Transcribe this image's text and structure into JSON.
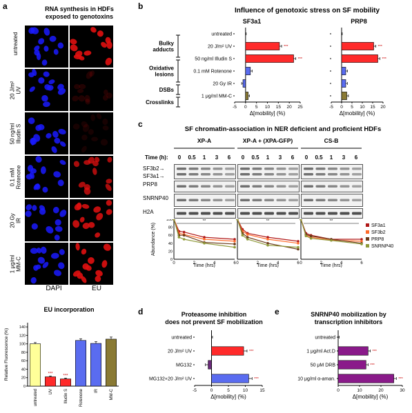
{
  "panel_a": {
    "letter": "a",
    "title": "RNA synthesis in HDFs\nexposed to genotoxins",
    "title_l1": "RNA synthesis in HDFs",
    "title_l2": "exposed to genotoxins",
    "rows": [
      "untreated",
      "20 J/m²\nUV",
      "50 ng/ml\nIlludin S",
      "0.1 mM\nRotenone",
      "20 Gy\nIR",
      "1 μg/ml\nMM-C"
    ],
    "col_dapi": "DAPI",
    "col_eu": "EU",
    "colors": {
      "dapi": "#1a1aff",
      "eu": "#e01010"
    }
  },
  "eu_chart_title": "EU incorporation",
  "panel_b": {
    "letter": "b",
    "title": "Influence of genotoxic stress on SF mobility",
    "sub_left": "SF3a1",
    "sub_right": "PRP8",
    "groups": [
      "Bulky\nadducts",
      "Oxidative\nlesions",
      "DSBs",
      "Crosslinks"
    ],
    "xlabel": "Δ[mobility] (%)"
  },
  "panel_c": {
    "letter": "c",
    "title": "SF chromatin-association in NER deficient and proficient HDFs",
    "time_label": "Time (h):",
    "cells": [
      "XP-A",
      "XP-A + (XPA-GFP)",
      "CS-B"
    ],
    "times": [
      "0",
      "0.5",
      "1",
      "3",
      "6"
    ],
    "blot_labels": [
      "SF3b2→",
      "SF3a1→",
      "PRP8",
      "SNRNP40",
      "H2A"
    ],
    "sig": "**"
  },
  "panel_d": {
    "letter": "d",
    "title_l1": "Proteasome inhibition",
    "title_l2": "does not prevent SF mobilization"
  },
  "panel_e": {
    "letter": "e",
    "title_l1": "SNRNP40 mobilization by",
    "title_l2": "transcription inhibitors"
  },
  "chart_data": [
    {
      "id": "eu",
      "type": "bar",
      "title": "EU incorporation",
      "ylabel": "Relative Fluorescence (%)",
      "categories": [
        "untreated",
        "UV",
        "Illudin S",
        "Rotenone",
        "IR",
        "MM-C"
      ],
      "values": [
        100,
        22,
        17,
        108,
        101,
        111
      ],
      "errors": [
        3,
        2,
        2,
        4,
        4,
        5
      ],
      "sig": [
        "",
        "***",
        "***",
        "",
        "",
        ""
      ],
      "colors": [
        "#ffff99",
        "#ff2a2a",
        "#ff2a2a",
        "#5a6cf0",
        "#5a6cf0",
        "#8a7a34"
      ],
      "ylim": [
        0,
        150
      ],
      "yticks": [
        0,
        20,
        40,
        60,
        80,
        100,
        120,
        140
      ]
    },
    {
      "id": "b_sf3a1",
      "type": "bar",
      "orientation": "horizontal",
      "title": "SF3a1",
      "xlabel": "Δ[mobility] (%)",
      "categories": [
        "untreated",
        "20 J/m² UV",
        "50 ng/ml Illudin S",
        "0.1 mM Rotenone",
        "20 Gy IR",
        "1 μg/ml MM-C"
      ],
      "values": [
        0,
        15.5,
        22,
        2.2,
        -1.2,
        1.2
      ],
      "errors": [
        0.3,
        1.0,
        1.0,
        0.8,
        0.6,
        0.6
      ],
      "sig": [
        "",
        "***",
        "***",
        "",
        "",
        ""
      ],
      "colors": [
        "#ffffff",
        "#ff2a2a",
        "#ff2a2a",
        "#5a6cf0",
        "#5a6cf0",
        "#8a7a34"
      ],
      "xlim": [
        -5,
        25
      ],
      "xticks": [
        -5,
        0,
        5,
        10,
        15,
        20,
        25
      ]
    },
    {
      "id": "b_prp8",
      "type": "bar",
      "orientation": "horizontal",
      "title": "PRP8",
      "xlabel": "Δ[mobility] (%)",
      "categories": [
        "untreated",
        "20 J/m² UV",
        "50 ng/ml Illudin S",
        "0.1 mM Rotenone",
        "20 Gy IR",
        "1 μg/ml MM-C"
      ],
      "values": [
        0,
        15.5,
        17.5,
        2.0,
        2.0,
        2.5
      ],
      "errors": [
        0.3,
        1.0,
        1.0,
        0.8,
        0.8,
        0.8
      ],
      "sig": [
        "",
        "***",
        "***",
        "",
        "",
        ""
      ],
      "colors": [
        "#ffffff",
        "#ff2a2a",
        "#ff2a2a",
        "#5a6cf0",
        "#5a6cf0",
        "#8a7a34"
      ],
      "xlim": [
        -5,
        20
      ],
      "xticks": [
        -5,
        0,
        5,
        10,
        15,
        20
      ]
    },
    {
      "id": "c_lines",
      "type": "line",
      "ylabel": "Abundance (%)",
      "xlabel": "Time (hrs)",
      "x": [
        0,
        0.5,
        1,
        3,
        6
      ],
      "ylim": [
        0,
        100
      ],
      "yticks": [
        0,
        20,
        40,
        60,
        80,
        100
      ],
      "xticks": [
        0,
        2,
        4,
        6
      ],
      "panels": [
        {
          "name": "XP-A",
          "series": [
            {
              "name": "SF3a1",
              "values": [
                100,
                70,
                68,
                55,
                50
              ],
              "color": "#b01818",
              "marker": "square"
            },
            {
              "name": "SF3b2",
              "values": [
                100,
                65,
                62,
                50,
                45
              ],
              "color": "#ff6b2b",
              "marker": "triangle"
            },
            {
              "name": "PRP8",
              "values": [
                100,
                60,
                60,
                42,
                38
              ],
              "color": "#6b3a1a",
              "marker": "circle"
            },
            {
              "name": "SNRNP40",
              "values": [
                100,
                55,
                50,
                40,
                30
              ],
              "color": "#8f9a3a",
              "marker": "diamond"
            }
          ]
        },
        {
          "name": "XP-A + (XPA-GFP)",
          "series": [
            {
              "name": "SF3a1",
              "values": [
                100,
                75,
                65,
                55,
                45
              ],
              "color": "#b01818",
              "marker": "square"
            },
            {
              "name": "SF3b2",
              "values": [
                100,
                70,
                62,
                50,
                40
              ],
              "color": "#ff6b2b",
              "marker": "triangle"
            },
            {
              "name": "PRP8",
              "values": [
                100,
                65,
                55,
                40,
                25
              ],
              "color": "#6b3a1a",
              "marker": "circle"
            },
            {
              "name": "SNRNP40",
              "values": [
                100,
                60,
                50,
                35,
                30
              ],
              "color": "#8f9a3a",
              "marker": "diamond"
            }
          ]
        },
        {
          "name": "CS-B",
          "series": [
            {
              "name": "SF3a1",
              "values": [
                100,
                65,
                60,
                50,
                50
              ],
              "color": "#b01818",
              "marker": "square"
            },
            {
              "name": "SF3b2",
              "values": [
                100,
                60,
                55,
                48,
                45
              ],
              "color": "#ff6b2b",
              "marker": "triangle"
            },
            {
              "name": "PRP8",
              "values": [
                100,
                62,
                58,
                50,
                40
              ],
              "color": "#6b3a1a",
              "marker": "circle"
            },
            {
              "name": "SNRNP40",
              "values": [
                100,
                58,
                52,
                47,
                38
              ],
              "color": "#8f9a3a",
              "marker": "diamond"
            }
          ]
        }
      ],
      "legend": [
        "SF3a1",
        "SF3b2",
        "PRP8",
        "SNRNP40"
      ]
    },
    {
      "id": "d",
      "type": "bar",
      "orientation": "horizontal",
      "xlabel": "Δ[mobility] (%)",
      "categories": [
        "untreated",
        "20 J/m² UV",
        "MG132",
        "MG132+20 J/m² UV"
      ],
      "values": [
        0,
        9.5,
        -1.0,
        11
      ],
      "errors": [
        0.3,
        1.0,
        0.8,
        1.0
      ],
      "sig": [
        "",
        "***",
        "",
        "***"
      ],
      "colors": [
        "#ffffff",
        "#ff2a2a",
        "#6a2a7a",
        "#5a6cf0"
      ],
      "xlim": [
        -5,
        15
      ],
      "xticks": [
        -5,
        0,
        5,
        10,
        15
      ]
    },
    {
      "id": "e",
      "type": "bar",
      "orientation": "horizontal",
      "xlabel": "Δ[mobility] (%)",
      "categories": [
        "untreated",
        "1 μg/ml Act.D",
        "50 μM DRB",
        "10 μg/ml α-aman."
      ],
      "values": [
        0,
        14,
        13,
        26
      ],
      "errors": [
        0.5,
        1.0,
        1.0,
        1.2
      ],
      "sig": [
        "",
        "***",
        "***",
        "***"
      ],
      "colors": [
        "#ffffff",
        "#8a1a8a",
        "#8a1a8a",
        "#8a1a8a"
      ],
      "xlim": [
        0,
        30
      ],
      "xticks": [
        0,
        10,
        20,
        30
      ]
    }
  ]
}
